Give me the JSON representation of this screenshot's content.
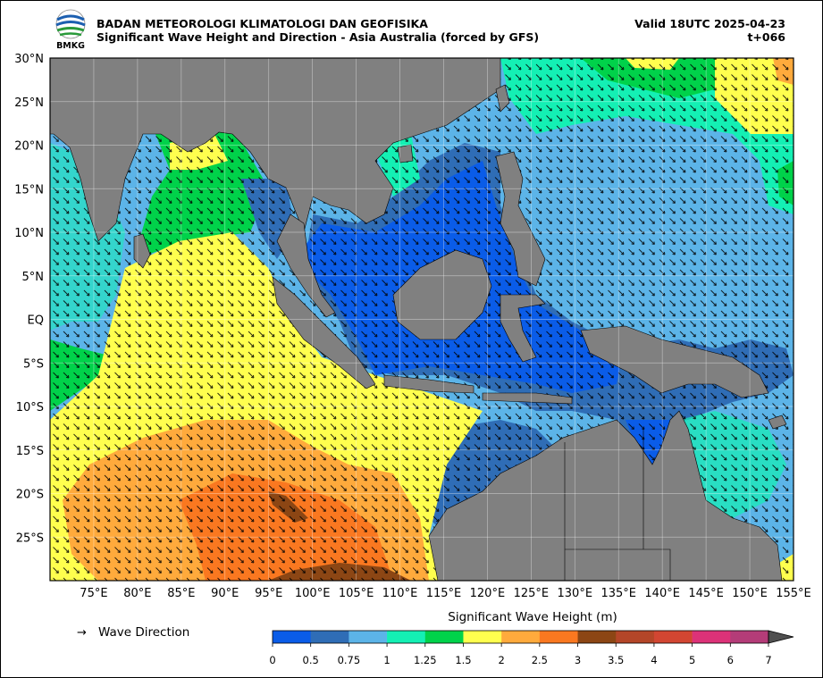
{
  "header": {
    "agency": "BADAN METEOROLOGI KLIMATOLOGI DAN GEOFISIKA",
    "subtitle": "Significant Wave Height and Direction - Asia Australia (forced by GFS)",
    "valid": "Valid 18UTC 2025-04-23",
    "lead": "t+066",
    "logo_text": "BMKG"
  },
  "map": {
    "lon_range": [
      70,
      155
    ],
    "lat_range": [
      -30,
      30
    ],
    "lat_labels": [
      "30°N",
      "25°N",
      "20°N",
      "15°N",
      "10°N",
      "5°N",
      "EQ",
      "5°S",
      "10°S",
      "15°S",
      "20°S",
      "25°S"
    ],
    "lon_labels": [
      "75°E",
      "80°E",
      "85°E",
      "90°E",
      "95°E",
      "100°E",
      "105°E",
      "110°E",
      "115°E",
      "120°E",
      "125°E",
      "130°E",
      "135°E",
      "140°E",
      "145°E",
      "150°E",
      "155°E"
    ],
    "land_color": "#808080"
  },
  "legend": {
    "arrow_symbol": "→",
    "arrow_label": "Wave Direction",
    "colorbar_title": "Significant Wave Height (m)",
    "ticks": [
      "0",
      "0.5",
      "0.75",
      "1",
      "1.25",
      "1.5",
      "2",
      "2.5",
      "3",
      "3.5",
      "4",
      "5",
      "6",
      "7"
    ],
    "colors": [
      "#0a5ce8",
      "#2f6db6",
      "#5cb4e8",
      "#14f0b4",
      "#00d24a",
      "#ffff4e",
      "#ffaa3c",
      "#fa7820",
      "#8c4614",
      "#b44628",
      "#d24632",
      "#dc3278",
      "#b43c78"
    ]
  }
}
